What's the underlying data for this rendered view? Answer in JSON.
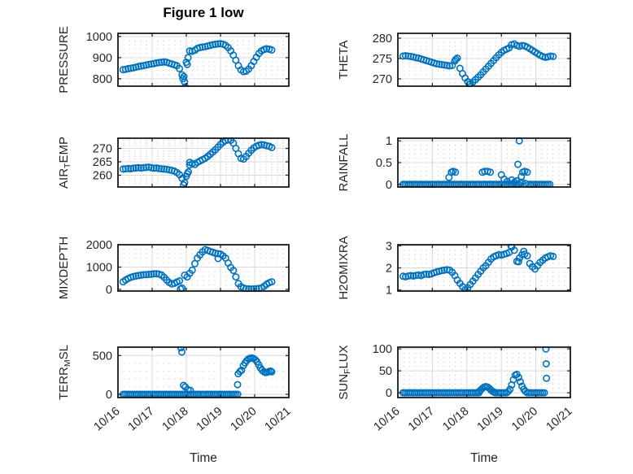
{
  "chart_data": {
    "type": "scatter",
    "title": "Figure 1 low",
    "xlabel": "Time",
    "xlim": [
      0,
      5
    ],
    "xticks": [
      0,
      1,
      2,
      3,
      4,
      5
    ],
    "xtick_labels": [
      "10/16",
      "10/17",
      "10/18",
      "10/19",
      "10/20",
      "10/21"
    ],
    "x_unit": "days since 10/16",
    "legend": "none",
    "grid": {
      "major": true,
      "minor_dotted": true
    },
    "marker": {
      "shape": "open-circle",
      "color": "#0072BD"
    },
    "colors": {
      "axis": "#1a1a1a",
      "grid_major": "#d9d9d9",
      "grid_minor": "#c3c3c3",
      "text": "#262626"
    },
    "subplots": [
      {
        "id": "pressure",
        "row": 0,
        "col": 0,
        "ylabel_parts": [
          {
            "t": "PRESSURE",
            "sub": false
          }
        ],
        "yticks": [
          800,
          900,
          1000
        ],
        "ytick_labels": [
          "800",
          "900",
          "1000"
        ],
        "ylim": [
          765,
          1015
        ],
        "yminor": 20,
        "series": {
          "x0": 0.15,
          "dt": 0.075,
          "y": [
            843,
            845,
            848,
            850,
            852,
            855,
            858,
            860,
            862,
            865,
            868,
            870,
            872,
            875,
            877,
            878,
            880,
            878,
            874,
            870,
            866,
            862,
            848,
            818,
            785,
            868,
            932,
            930,
            935,
            944,
            948,
            950,
            952,
            955,
            958,
            961,
            963,
            965,
            966,
            964,
            958,
            948,
            932,
            912,
            888,
            862,
            842,
            834,
            836,
            846,
            862,
            882,
            902,
            920,
            932,
            939,
            942,
            940,
            936
          ]
        },
        "extra_points": [
          [
            1.9,
            800
          ],
          [
            1.93,
            810
          ],
          [
            1.97,
            762
          ],
          [
            2.0,
            878
          ],
          [
            2.05,
            900
          ]
        ]
      },
      {
        "id": "theta",
        "row": 0,
        "col": 1,
        "ylabel_parts": [
          {
            "t": "THETA",
            "sub": false
          }
        ],
        "yticks": [
          270,
          275,
          280
        ],
        "ytick_labels": [
          "270",
          "275",
          "280"
        ],
        "ylim": [
          268.2,
          281.2
        ],
        "yminor": 1,
        "series": {
          "x0": 0.15,
          "dt": 0.075,
          "y": [
            275.6,
            275.7,
            275.6,
            275.5,
            275.4,
            275.2,
            275.1,
            274.9,
            274.7,
            274.5,
            274.3,
            274.1,
            273.9,
            273.7,
            273.6,
            273.5,
            273.4,
            273.3,
            273.2,
            273.3,
            274.4,
            275.1,
            272.6,
            271.3,
            270.2,
            269.3,
            268.8,
            269.2,
            269.8,
            270.4,
            271.0,
            271.7,
            272.4,
            273.1,
            273.8,
            274.5,
            275.2,
            275.9,
            276.5,
            277.0,
            277.3,
            277.6,
            278.4,
            278.6,
            278.2,
            278.0,
            278.2,
            278.1,
            277.8,
            277.4,
            277.0,
            276.6,
            276.2,
            275.8,
            275.5,
            275.3,
            275.4,
            275.6,
            275.5
          ]
        },
        "extra_points": [
          [
            1.68,
            274.8
          ],
          [
            2.07,
            268.6
          ]
        ]
      },
      {
        "id": "air-temp",
        "row": 1,
        "col": 0,
        "ylabel_parts": [
          {
            "t": "AIR",
            "sub": false
          },
          {
            "t": "T",
            "sub": true
          },
          {
            "t": "EMP",
            "sub": false
          }
        ],
        "yticks": [
          260,
          265,
          270
        ],
        "ytick_labels": [
          "260",
          "265",
          "270"
        ],
        "ylim": [
          255.6,
          273.8
        ],
        "yminor": 1,
        "series": {
          "x0": 0.15,
          "dt": 0.075,
          "y": [
            262.3,
            262.4,
            262.5,
            262.4,
            262.6,
            262.7,
            262.8,
            262.7,
            262.8,
            262.9,
            263.0,
            262.8,
            262.6,
            262.7,
            262.5,
            262.4,
            262.3,
            262.2,
            262.0,
            261.8,
            261.5,
            261.0,
            260.2,
            258.8,
            257.2,
            260.5,
            263.8,
            264.3,
            264.0,
            264.8,
            265.3,
            265.8,
            266.3,
            267.0,
            267.8,
            268.6,
            269.5,
            270.5,
            271.5,
            272.3,
            272.9,
            273.2,
            273.0,
            272.0,
            270.0,
            268.0,
            266.3,
            266.0,
            267.0,
            268.2,
            269.3,
            270.2,
            270.8,
            271.2,
            271.4,
            271.3,
            271.0,
            270.8,
            270.3
          ]
        },
        "extra_points": [
          [
            1.92,
            256.4
          ],
          [
            2.0,
            259.6
          ],
          [
            2.06,
            261.2
          ],
          [
            2.1,
            264.8
          ]
        ]
      },
      {
        "id": "rainfall",
        "row": 1,
        "col": 1,
        "ylabel_parts": [
          {
            "t": "RAINFALL",
            "sub": false
          }
        ],
        "yticks": [
          0,
          0.5,
          1
        ],
        "ytick_labels": [
          "0",
          "0.5",
          "1"
        ],
        "ylim": [
          -0.06,
          1.06
        ],
        "yminor": 0.1,
        "zero_runs": [
          [
            0.15,
            3.5
          ],
          [
            3.8,
            4.42
          ]
        ],
        "points": [
          [
            1.48,
            0.16
          ],
          [
            1.55,
            0.28
          ],
          [
            1.6,
            0.3
          ],
          [
            1.67,
            0.28
          ],
          [
            2.45,
            0.28
          ],
          [
            2.52,
            0.3
          ],
          [
            2.6,
            0.3
          ],
          [
            2.68,
            0.28
          ],
          [
            3.0,
            0.22
          ],
          [
            3.08,
            0.12
          ],
          [
            3.17,
            0.07
          ],
          [
            3.3,
            0.1
          ],
          [
            3.38,
            0.05
          ],
          [
            3.44,
            0.08
          ],
          [
            3.48,
            0.46
          ],
          [
            3.52,
            1.0
          ],
          [
            3.55,
            0.03
          ],
          [
            3.58,
            0.18
          ],
          [
            3.62,
            0.28
          ],
          [
            3.68,
            0.3
          ],
          [
            3.75,
            0.28
          ],
          [
            3.6,
            0.05
          ],
          [
            3.7,
            0.02
          ]
        ]
      },
      {
        "id": "mixdepth",
        "row": 2,
        "col": 0,
        "ylabel_parts": [
          {
            "t": "MIXDEPTH",
            "sub": false
          }
        ],
        "yticks": [
          0,
          1000,
          2000
        ],
        "ytick_labels": [
          "0",
          "1000",
          "2000"
        ],
        "ylim": [
          -75,
          2000
        ],
        "yminor": 200,
        "series": {
          "x0": 0.15,
          "dt": 0.075,
          "y": [
            340,
            420,
            490,
            540,
            575,
            600,
            620,
            640,
            655,
            665,
            670,
            680,
            695,
            700,
            685,
            640,
            540,
            420,
            310,
            240,
            270,
            330,
            380,
            60,
            640,
            560,
            720,
            860,
            1150,
            1400,
            1550,
            1680,
            1780,
            1750,
            1700,
            1660,
            1620,
            1600,
            1580,
            1500,
            1400,
            1180,
            980,
            850,
            560,
            260,
            120,
            60,
            30,
            20,
            15,
            20,
            30,
            40,
            60,
            140,
            230,
            300,
            340
          ]
        },
        "extra_points": [
          [
            1.83,
            20
          ],
          [
            2.93,
            1380
          ]
        ]
      },
      {
        "id": "h2omixra",
        "row": 2,
        "col": 1,
        "ylabel_parts": [
          {
            "t": "H2OMIXRA",
            "sub": false
          }
        ],
        "yticks": [
          1,
          2,
          3
        ],
        "ytick_labels": [
          "1",
          "2",
          "3"
        ],
        "ylim": [
          0.95,
          3.05
        ],
        "yminor": 0.2,
        "series": {
          "x0": 0.15,
          "dt": 0.075,
          "y": [
            1.62,
            1.6,
            1.63,
            1.65,
            1.63,
            1.66,
            1.68,
            1.65,
            1.7,
            1.72,
            1.7,
            1.73,
            1.78,
            1.82,
            1.85,
            1.88,
            1.9,
            1.92,
            1.9,
            1.8,
            1.65,
            1.45,
            1.3,
            1.15,
            1.02,
            1.1,
            1.25,
            1.4,
            1.55,
            1.7,
            1.85,
            2.0,
            2.1,
            2.25,
            2.4,
            2.5,
            2.55,
            2.6,
            2.58,
            2.62,
            2.65,
            2.7,
            2.95,
            2.8,
            2.3,
            2.45,
            2.6,
            2.62,
            2.55,
            2.2,
            2.05,
            1.95,
            2.1,
            2.25,
            2.35,
            2.45,
            2.5,
            2.55,
            2.52
          ]
        },
        "extra_points": [
          [
            3.28,
            3.0
          ],
          [
            3.5,
            2.28
          ],
          [
            3.65,
            2.75
          ]
        ]
      },
      {
        "id": "terr-msl",
        "row": 3,
        "col": 0,
        "ylabel_parts": [
          {
            "t": "TERR",
            "sub": false
          },
          {
            "t": "M",
            "sub": true
          },
          {
            "t": "SL",
            "sub": false
          }
        ],
        "yticks": [
          0,
          500
        ],
        "ytick_labels": [
          "0",
          "500"
        ],
        "ylim": [
          -42,
          608
        ],
        "yminor": 100,
        "zero_runs": [
          [
            0.15,
            3.5
          ]
        ],
        "points": [
          [
            1.84,
            600
          ],
          [
            1.87,
            545
          ],
          [
            1.92,
            115
          ],
          [
            1.97,
            95
          ],
          [
            2.05,
            60
          ],
          [
            2.12,
            50
          ],
          [
            3.5,
            125
          ],
          [
            3.52,
            265
          ],
          [
            3.57,
            295
          ],
          [
            3.62,
            310
          ],
          [
            3.67,
            370
          ],
          [
            3.72,
            405
          ],
          [
            3.77,
            435
          ],
          [
            3.82,
            455
          ],
          [
            3.87,
            465
          ],
          [
            3.92,
            470
          ],
          [
            3.97,
            460
          ],
          [
            4.02,
            445
          ],
          [
            4.07,
            420
          ],
          [
            4.12,
            380
          ],
          [
            4.17,
            340
          ],
          [
            4.22,
            310
          ],
          [
            4.27,
            290
          ],
          [
            4.32,
            280
          ],
          [
            4.37,
            285
          ],
          [
            4.42,
            295
          ],
          [
            4.47,
            300
          ],
          [
            4.5,
            290
          ]
        ]
      },
      {
        "id": "sun-flux",
        "row": 3,
        "col": 1,
        "ylabel_parts": [
          {
            "t": "SUN",
            "sub": false
          },
          {
            "t": "F",
            "sub": true
          },
          {
            "t": "LUX",
            "sub": false
          }
        ],
        "yticks": [
          0,
          50,
          100
        ],
        "ytick_labels": [
          "0",
          "50",
          "100"
        ],
        "ylim": [
          -11,
          104
        ],
        "yminor": 10,
        "zero_runs": [
          [
            0.15,
            2.33
          ],
          [
            2.82,
            3.17
          ],
          [
            3.75,
            4.25
          ]
        ],
        "points": [
          [
            2.35,
            3
          ],
          [
            2.4,
            6
          ],
          [
            2.45,
            10
          ],
          [
            2.5,
            13
          ],
          [
            2.55,
            14
          ],
          [
            2.6,
            13
          ],
          [
            2.65,
            10
          ],
          [
            2.7,
            6
          ],
          [
            2.75,
            3
          ],
          [
            2.8,
            1
          ],
          [
            3.2,
            3
          ],
          [
            3.25,
            8
          ],
          [
            3.3,
            18
          ],
          [
            3.35,
            30
          ],
          [
            3.4,
            40
          ],
          [
            3.45,
            42
          ],
          [
            3.5,
            35
          ],
          [
            3.55,
            25
          ],
          [
            3.6,
            15
          ],
          [
            3.65,
            8
          ],
          [
            3.7,
            3
          ],
          [
            4.29,
            100
          ],
          [
            4.3,
            66
          ],
          [
            4.31,
            33
          ]
        ]
      }
    ]
  }
}
